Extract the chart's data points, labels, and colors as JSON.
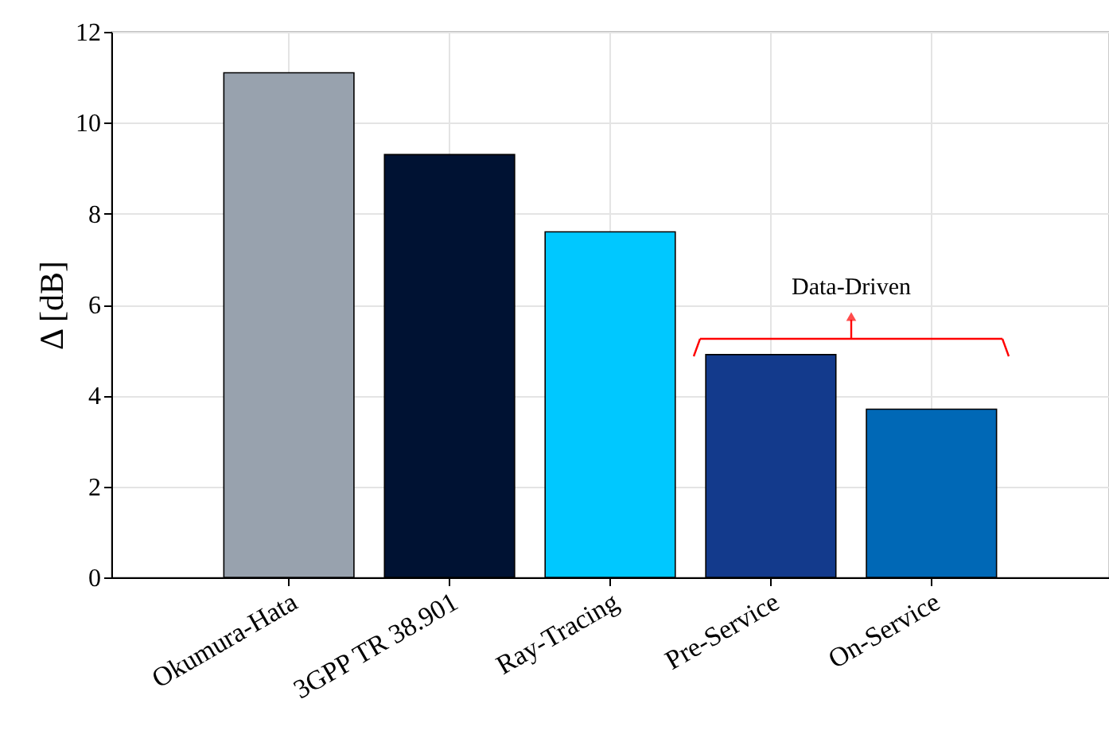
{
  "chart_data": {
    "type": "bar",
    "ylabel": "Δ [dB]",
    "categories": [
      "Okumura-Hata",
      "3GPP TR 38.901",
      "Ray-Tracing",
      "Pre-Service",
      "On-Service"
    ],
    "values": [
      11.1,
      9.3,
      7.6,
      4.9,
      3.7
    ],
    "colors": [
      "#98a2ae",
      "#001233",
      "#00c8ff",
      "#133a8c",
      "#0068b6"
    ],
    "ylim": [
      0,
      12
    ],
    "yticks": [
      0,
      2,
      4,
      6,
      8,
      10,
      12
    ],
    "grid": true,
    "annotations": [
      "Data-Driven"
    ]
  }
}
